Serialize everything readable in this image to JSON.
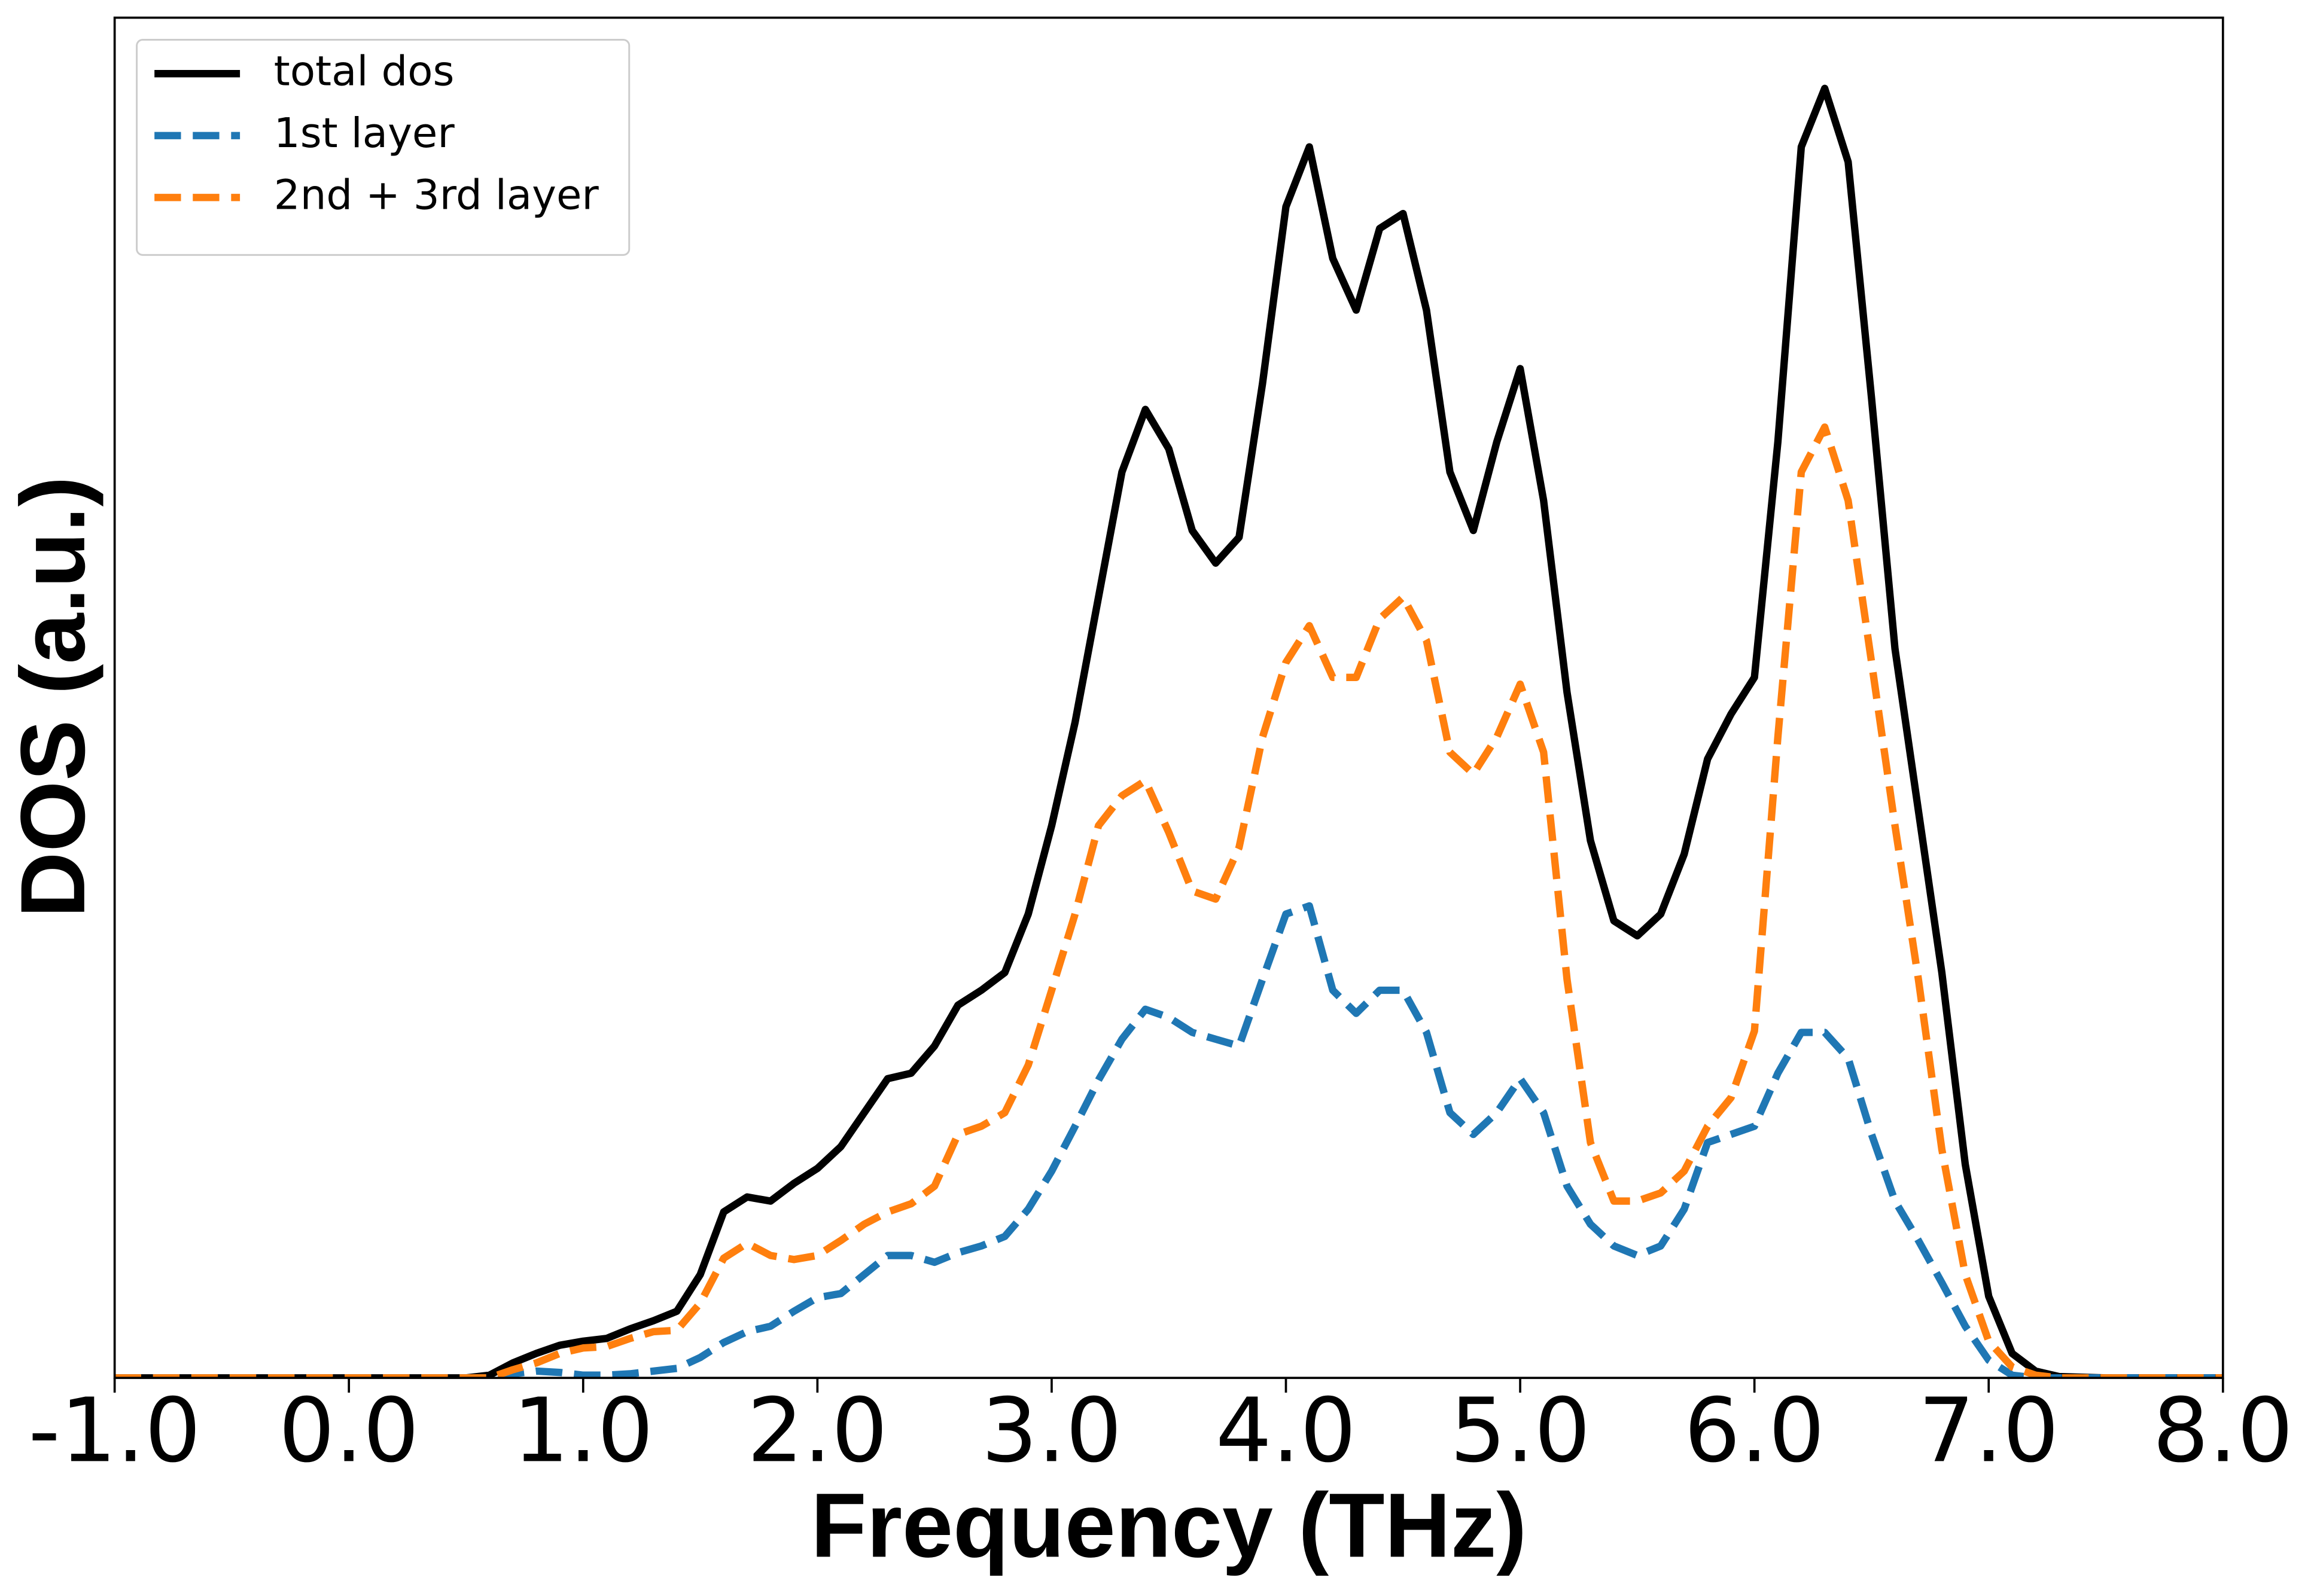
{
  "chart_data": {
    "type": "line",
    "xlabel": "Frequency (THz)",
    "ylabel": "DOS (a.u.)",
    "x": [
      -1,
      0,
      0.5,
      0.6,
      0.7,
      0.8,
      0.9,
      1.0,
      1.1,
      1.2,
      1.3,
      1.4,
      1.5,
      1.6,
      1.7,
      1.8,
      1.9,
      2.0,
      2.1,
      2.2,
      2.3,
      2.4,
      2.5,
      2.6,
      2.7,
      2.8,
      2.9,
      3.0,
      3.1,
      3.2,
      3.3,
      3.4,
      3.5,
      3.6,
      3.7,
      3.8,
      3.9,
      4.0,
      4.1,
      4.2,
      4.3,
      4.4,
      4.5,
      4.6,
      4.7,
      4.8,
      4.9,
      5.0,
      5.1,
      5.2,
      5.3,
      5.4,
      5.5,
      5.6,
      5.7,
      5.8,
      5.9,
      6.0,
      6.1,
      6.2,
      6.3,
      6.4,
      6.5,
      6.6,
      6.7,
      6.8,
      6.9,
      7.0,
      7.1,
      7.2,
      7.3,
      7.5,
      8
    ],
    "series": [
      {
        "name": "total dos",
        "color": "#000000",
        "linestyle": "solid",
        "values": [
          0,
          0,
          0,
          0.2,
          1.1,
          1.8,
          2.4,
          2.7,
          2.9,
          3.6,
          4.2,
          4.9,
          7.6,
          12.2,
          13.3,
          13.0,
          14.3,
          15.4,
          17.0,
          19.5,
          22.0,
          22.4,
          24.4,
          27.4,
          28.5,
          29.8,
          34.1,
          40.6,
          48.2,
          57.4,
          66.6,
          71.2,
          68.3,
          62.3,
          59.9,
          61.8,
          73.1,
          86.1,
          90.5,
          82.3,
          78.5,
          84.5,
          85.6,
          78.5,
          66.6,
          62.3,
          68.8,
          74.2,
          64.5,
          50.4,
          39.5,
          33.6,
          32.5,
          34.1,
          38.5,
          45.5,
          48.8,
          51.5,
          68.8,
          90.5,
          94.8,
          89.4,
          72.0,
          53.6,
          41.7,
          29.8,
          15.7,
          6.0,
          1.8,
          0.5,
          0.1,
          0,
          0
        ]
      },
      {
        "name": "1st layer",
        "color": "#1f77b4",
        "linestyle": "dashed",
        "values": [
          0,
          0,
          0,
          0,
          0.3,
          0.5,
          0.4,
          0.2,
          0.2,
          0.3,
          0.5,
          0.7,
          1.5,
          2.6,
          3.4,
          3.8,
          4.9,
          5.9,
          6.2,
          7.6,
          9.0,
          9.0,
          8.5,
          9.2,
          9.7,
          10.4,
          12.4,
          15.2,
          18.5,
          21.9,
          24.9,
          27.1,
          26.5,
          25.4,
          24.9,
          24.4,
          29.3,
          34.1,
          34.7,
          28.5,
          26.8,
          28.5,
          28.5,
          25.4,
          19.5,
          17.9,
          19.5,
          22.0,
          19.5,
          14.1,
          11.3,
          9.7,
          9.0,
          9.7,
          12.4,
          17.3,
          17.9,
          18.5,
          22.4,
          25.4,
          25.4,
          23.5,
          17.9,
          13.0,
          10.1,
          7.0,
          3.8,
          1.3,
          0.2,
          0,
          0,
          0,
          0
        ]
      },
      {
        "name": "2nd + 3rd layer",
        "color": "#ff7f0e",
        "linestyle": "dashed",
        "values": [
          0,
          0,
          0,
          0,
          0.6,
          1.1,
          1.8,
          2.2,
          2.3,
          2.9,
          3.4,
          3.5,
          5.5,
          8.8,
          9.9,
          9.0,
          8.7,
          9.0,
          10.1,
          11.3,
          12.2,
          12.8,
          14.1,
          17.9,
          18.5,
          19.5,
          23.0,
          28.5,
          34.1,
          40.6,
          42.8,
          43.9,
          40.1,
          35.8,
          35.2,
          39.0,
          47.1,
          52.6,
          55.3,
          51.5,
          51.5,
          55.8,
          57.4,
          54.2,
          46.0,
          44.4,
          47.1,
          51.0,
          46.0,
          29.3,
          17.3,
          13.0,
          13.0,
          13.6,
          15.2,
          18.5,
          20.6,
          25.5,
          47.1,
          66.6,
          69.9,
          64.5,
          52.6,
          40.6,
          29.3,
          16.8,
          7.6,
          2.7,
          0.8,
          0.2,
          0,
          0,
          0
        ]
      }
    ],
    "xlim": [
      -1,
      8
    ],
    "ylim": [
      0,
      100
    ],
    "xticks": [
      {
        "value": -1,
        "label": "-1.0"
      },
      {
        "value": 0,
        "label": "0.0"
      },
      {
        "value": 1,
        "label": "1.0"
      },
      {
        "value": 2,
        "label": "2.0"
      },
      {
        "value": 3,
        "label": "3.0"
      },
      {
        "value": 4,
        "label": "4.0"
      },
      {
        "value": 5,
        "label": "5.0"
      },
      {
        "value": 6,
        "label": "6.0"
      },
      {
        "value": 7,
        "label": "7.0"
      },
      {
        "value": 8,
        "label": "8.0"
      }
    ],
    "legend": "upper left",
    "grid": false
  }
}
